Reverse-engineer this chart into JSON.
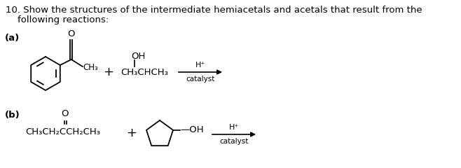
{
  "background_color": "#ffffff",
  "text_color": "#000000",
  "title_line1": "10. Show the structures of the intermediate hemiacetals and acetals that result from the",
  "title_line2": "    following reactions:",
  "label_a": "(a)",
  "label_b": "(b)",
  "fontsize_main": 9.5,
  "fontsize_small": 8.0,
  "fontsize_catalyst": 7.5
}
